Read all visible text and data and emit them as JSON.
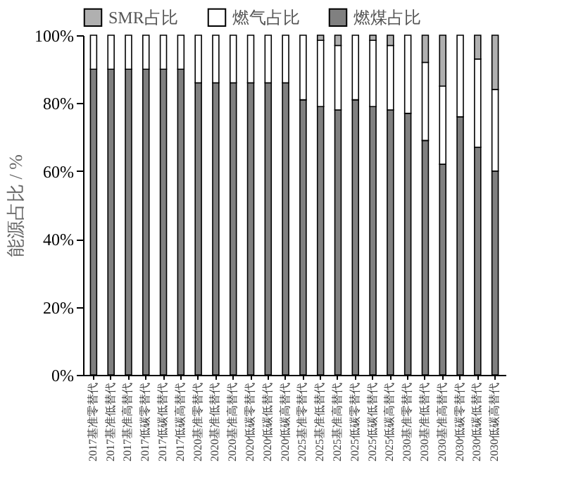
{
  "chart_data": {
    "type": "bar",
    "stacked": true,
    "ylabel": "能源占比 / %",
    "legend": "top",
    "categories": [
      "2017基准零替代",
      "2017基准低替代",
      "2017基准高替代",
      "2017低碳零替代",
      "2017低碳低替代",
      "2017低碳高替代",
      "2020基准零替代",
      "2020基准低替代",
      "2020基准高替代",
      "2020低碳零替代",
      "2020低碳低替代",
      "2020低碳高替代",
      "2025基准零替代",
      "2025基准低替代",
      "2025基准高替代",
      "2025低碳零替代",
      "2025低碳低替代",
      "2025低碳高替代",
      "2030基准零替代",
      "2030基准低替代",
      "2030基准高替代",
      "2030低碳零替代",
      "2030低碳低替代",
      "2030低碳高替代"
    ],
    "series": [
      {
        "name": "燃煤占比",
        "color": "#808080",
        "values": [
          90,
          90,
          90,
          90,
          90,
          90,
          86,
          86,
          86,
          86,
          86,
          86,
          81,
          79,
          78,
          81,
          79,
          78,
          77,
          69,
          62,
          76,
          67,
          60
        ]
      },
      {
        "name": "燃气占比",
        "color": "#ffffff",
        "values": [
          10,
          10,
          10,
          10,
          10,
          10,
          14,
          14,
          14,
          14,
          14,
          14,
          19,
          19.5,
          19,
          19,
          19.5,
          19,
          23,
          23,
          23,
          24,
          26,
          24
        ]
      },
      {
        "name": "SMR占比",
        "color": "#b0b0b0",
        "values": [
          null,
          null,
          null,
          null,
          null,
          null,
          null,
          null,
          null,
          null,
          null,
          null,
          null,
          1.5,
          3,
          null,
          1.5,
          3,
          null,
          8,
          15,
          null,
          7,
          16
        ]
      }
    ],
    "ylim": [
      0,
      100
    ],
    "yticks": [
      {
        "value": 0,
        "label": "0%"
      },
      {
        "value": 20,
        "label": "20%"
      },
      {
        "value": 40,
        "label": "40%"
      },
      {
        "value": 60,
        "label": "60%"
      },
      {
        "value": 80,
        "label": "80%"
      },
      {
        "value": 100,
        "label": "100%"
      }
    ]
  }
}
